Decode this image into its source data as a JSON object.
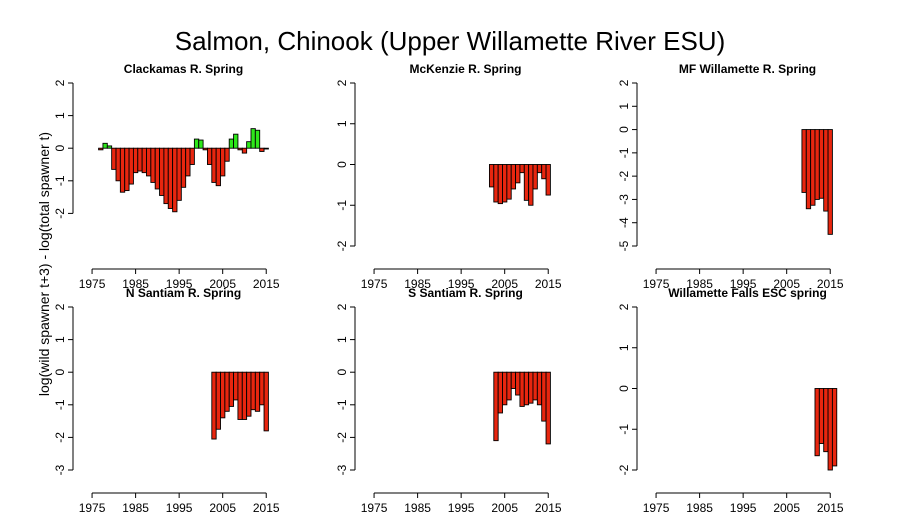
{
  "title": "Salmon, Chinook (Upper Willamette River ESU)",
  "ylabel": "log(wild spawner t+3) - log(total spawner t)",
  "colors": {
    "negative": "#e8260f",
    "positive": "#2ee81a",
    "outline": "#000000"
  },
  "chart_data": [
    {
      "type": "bar",
      "title": "Clackamas R. Spring",
      "xlim": [
        1972,
        2020
      ],
      "ylim": [
        -3.0,
        2.0
      ],
      "xticks": [
        1975,
        1985,
        1995,
        2005,
        2015
      ],
      "yticks": [
        -2,
        -1,
        0,
        1,
        2
      ],
      "x": [
        1977,
        1978,
        1979,
        1980,
        1981,
        1982,
        1983,
        1984,
        1985,
        1986,
        1987,
        1988,
        1989,
        1990,
        1991,
        1992,
        1993,
        1994,
        1995,
        1996,
        1997,
        1998,
        1999,
        2000,
        2001,
        2002,
        2003,
        2004,
        2005,
        2006,
        2007,
        2008,
        2009,
        2010,
        2011,
        2012,
        2013,
        2014,
        2015
      ],
      "values": [
        -0.05,
        0.15,
        0.07,
        -0.65,
        -1.0,
        -1.35,
        -1.3,
        -1.1,
        -0.75,
        -0.7,
        -0.75,
        -0.85,
        -1.05,
        -1.25,
        -1.45,
        -1.7,
        -1.85,
        -1.95,
        -1.6,
        -1.2,
        -0.85,
        -0.5,
        0.28,
        0.25,
        -0.05,
        -0.5,
        -1.05,
        -1.15,
        -0.85,
        -0.4,
        0.28,
        0.43,
        -0.05,
        -0.15,
        0.2,
        0.6,
        0.55,
        -0.1,
        0
      ]
    },
    {
      "type": "bar",
      "title": "McKenzie R. Spring",
      "xlim": [
        1972,
        2020
      ],
      "ylim": [
        -2.0,
        2.0
      ],
      "xticks": [
        1975,
        1985,
        1995,
        2005,
        2015
      ],
      "yticks": [
        -2,
        -1,
        0,
        1,
        2
      ],
      "x": [
        2002,
        2003,
        2004,
        2005,
        2006,
        2007,
        2008,
        2009,
        2010,
        2011,
        2012,
        2013,
        2014,
        2015
      ],
      "values": [
        -0.55,
        -0.92,
        -0.96,
        -0.92,
        -0.85,
        -0.6,
        -0.45,
        -0.2,
        -0.88,
        -1.0,
        -0.6,
        -0.2,
        -0.35,
        -0.75
      ]
    },
    {
      "type": "bar",
      "title": "MF Willamette R. Spring",
      "xlim": [
        1972,
        2020
      ],
      "ylim": [
        -5.0,
        2.0
      ],
      "xticks": [
        1975,
        1985,
        1995,
        2005,
        2015
      ],
      "yticks": [
        -5,
        -4,
        -3,
        -2,
        -1,
        0,
        1,
        2
      ],
      "x": [
        2009,
        2010,
        2011,
        2012,
        2013,
        2014,
        2015
      ],
      "values": [
        -2.7,
        -3.4,
        -3.25,
        -3.0,
        -2.95,
        -3.5,
        -4.5
      ]
    },
    {
      "type": "bar",
      "title": "N Santiam R. Spring",
      "xlim": [
        1972,
        2020
      ],
      "ylim": [
        -3.0,
        2.0
      ],
      "xticks": [
        1975,
        1985,
        1995,
        2005,
        2015
      ],
      "yticks": [
        -3,
        -2,
        -1,
        0,
        1,
        2
      ],
      "x": [
        2003,
        2004,
        2005,
        2006,
        2007,
        2008,
        2009,
        2010,
        2011,
        2012,
        2013,
        2014,
        2015
      ],
      "values": [
        -2.05,
        -1.75,
        -1.4,
        -1.2,
        -1.05,
        -0.85,
        -1.45,
        -1.45,
        -1.35,
        -1.15,
        -1.2,
        -1.0,
        -1.8
      ]
    },
    {
      "type": "bar",
      "title": "S Santiam R. Spring",
      "xlim": [
        1972,
        2020
      ],
      "ylim": [
        -3.0,
        2.0
      ],
      "xticks": [
        1975,
        1985,
        1995,
        2005,
        2015
      ],
      "yticks": [
        -3,
        -2,
        -1,
        0,
        1,
        2
      ],
      "x": [
        2003,
        2004,
        2005,
        2006,
        2007,
        2008,
        2009,
        2010,
        2011,
        2012,
        2013,
        2014,
        2015
      ],
      "values": [
        -2.1,
        -1.25,
        -1.0,
        -0.85,
        -0.5,
        -0.7,
        -1.05,
        -1.0,
        -0.95,
        -0.85,
        -1.0,
        -1.5,
        -2.2
      ]
    },
    {
      "type": "bar",
      "title": "Willamette Falls ESC spring",
      "xlim": [
        1972,
        2020
      ],
      "ylim": [
        -2.0,
        2.0
      ],
      "xticks": [
        1975,
        1985,
        1995,
        2005,
        2015
      ],
      "yticks": [
        -2,
        -1,
        0,
        1,
        2
      ],
      "x": [
        2012,
        2013,
        2014,
        2015,
        2016
      ],
      "values": [
        -1.65,
        -1.35,
        -1.55,
        -2.0,
        -1.9
      ]
    }
  ]
}
